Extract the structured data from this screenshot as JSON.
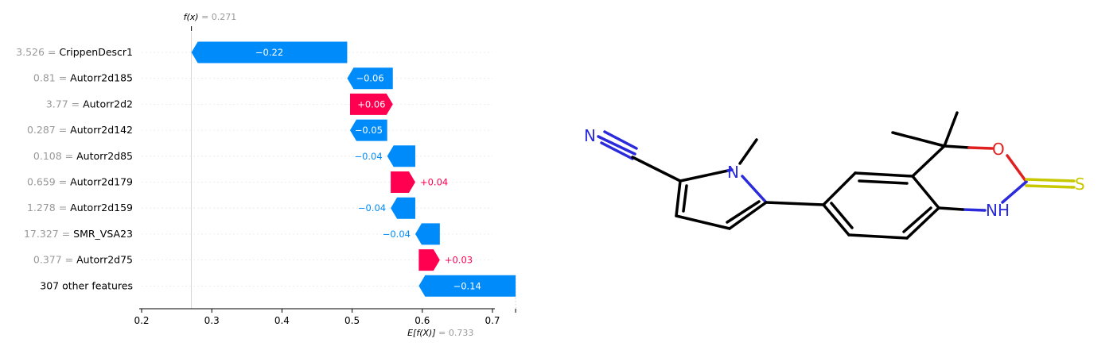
{
  "chart_data": {
    "type": "waterfall",
    "fx_label": "f(x)",
    "fx_value": "0.271",
    "fx": 0.271,
    "efx_label": "E[f(X)]",
    "efx_value": "0.733",
    "efx": 0.733,
    "xlim": [
      0.175,
      0.735
    ],
    "xticks": [
      "0.2",
      "0.3",
      "0.4",
      "0.5",
      "0.6",
      "0.7"
    ],
    "features": [
      {
        "value": "3.526",
        "name": "CrippenDescr1",
        "label": "−0.22",
        "start": 0.493,
        "end": 0.271
      },
      {
        "value": "0.81",
        "name": "Autorr2d185",
        "label": "−0.06",
        "start": 0.558,
        "end": 0.493
      },
      {
        "value": "3.77",
        "name": "Autorr2d2",
        "label": "+0.06",
        "start": 0.497,
        "end": 0.558
      },
      {
        "value": "0.287",
        "name": "Autorr2d142",
        "label": "−0.05",
        "start": 0.55,
        "end": 0.497
      },
      {
        "value": "0.108",
        "name": "Autorr2d85",
        "label": "−0.04",
        "start": 0.59,
        "end": 0.55
      },
      {
        "value": "0.659",
        "name": "Autorr2d179",
        "label": "+0.04",
        "start": 0.555,
        "end": 0.59
      },
      {
        "value": "1.278",
        "name": "Autorr2d159",
        "label": "−0.04",
        "start": 0.59,
        "end": 0.555
      },
      {
        "value": "17.327",
        "name": "SMR_VSA23",
        "label": "−0.04",
        "start": 0.625,
        "end": 0.59
      },
      {
        "value": "0.377",
        "name": "Autorr2d75",
        "label": "+0.03",
        "start": 0.595,
        "end": 0.625
      },
      {
        "value": "",
        "name": "307 other features",
        "label": "−0.14",
        "start": 0.733,
        "end": 0.595
      }
    ],
    "colors": {
      "negative": "#008bfb",
      "positive": "#ff0051",
      "muted": "#999999"
    }
  },
  "molecule": {
    "atoms": [
      {
        "label": "N",
        "color": "#2b2bdc"
      },
      {
        "label": "N",
        "color": "#2b2bdc"
      },
      {
        "label": "O",
        "color": "#e02020"
      },
      {
        "label": "S",
        "color": "#c8c800"
      },
      {
        "label": "NH",
        "color": "#2b2bdc"
      }
    ]
  }
}
